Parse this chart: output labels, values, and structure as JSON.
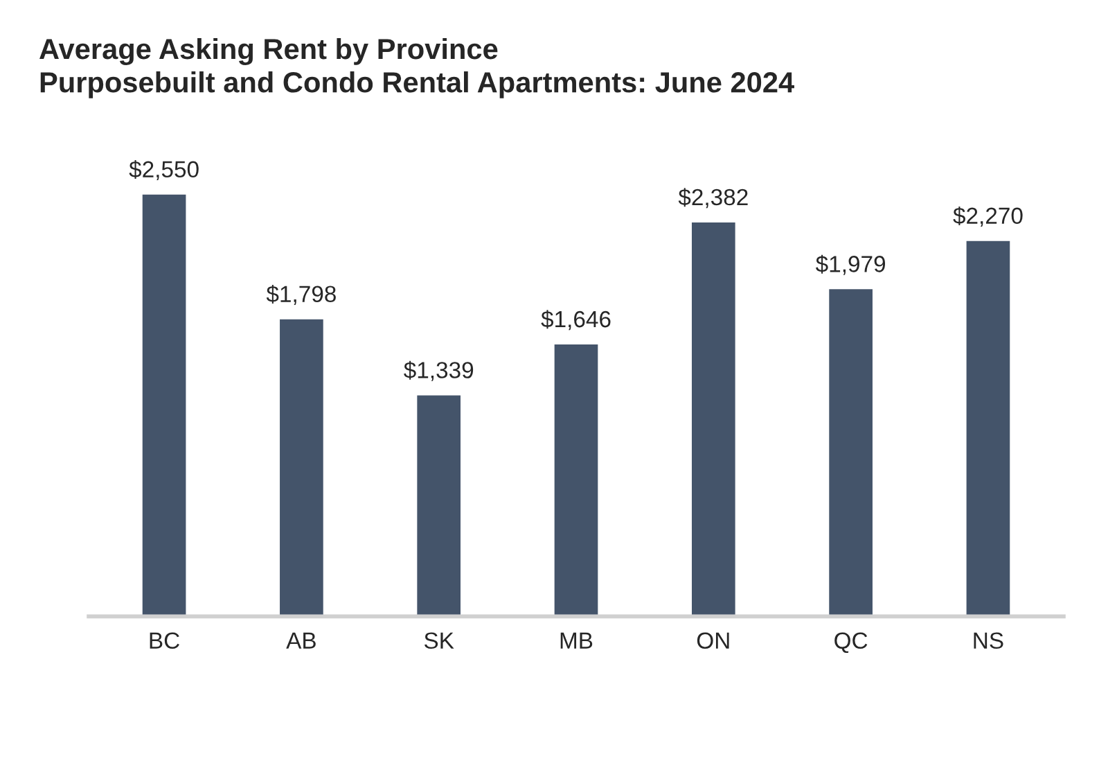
{
  "chart_data": {
    "type": "bar",
    "title": "Average Asking Rent by Province\nPurposebuilt and Condo Rental Apartments: June 2024",
    "categories": [
      "BC",
      "AB",
      "SK",
      "MB",
      "ON",
      "QC",
      "NS"
    ],
    "values": [
      2550,
      1798,
      1339,
      1646,
      2382,
      1979,
      2270
    ],
    "color": "#44546a",
    "value_labels": [
      "$2,550",
      "$1,798",
      "$1,339",
      "$1,646",
      "$2,382",
      "$1,979",
      "$2,270"
    ],
    "grid": false,
    "legend": false
  }
}
